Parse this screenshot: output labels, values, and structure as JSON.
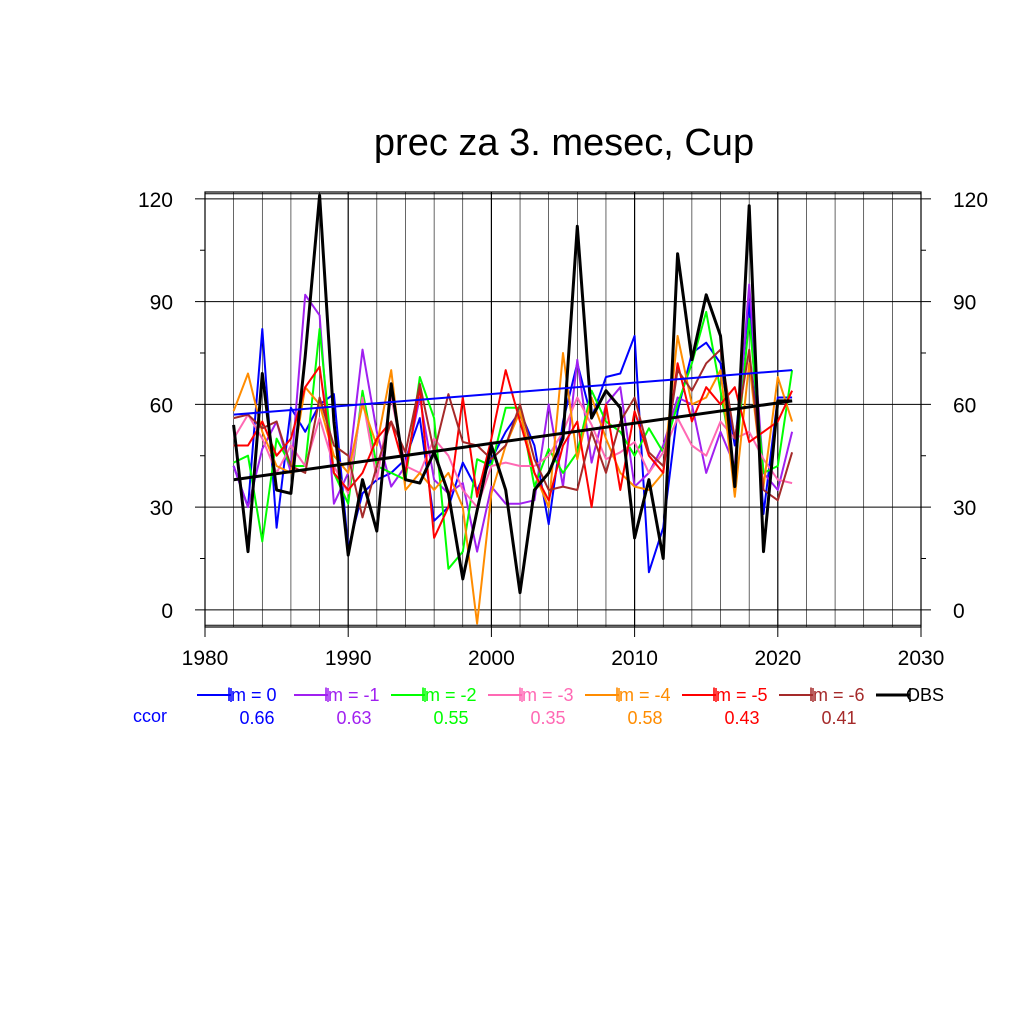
{
  "chart_data": {
    "type": "line",
    "title": "prec za 3. mesec, Cup",
    "xlim": [
      1980,
      2030
    ],
    "ylim": [
      -5,
      122
    ],
    "x_ticks": [
      1980,
      1990,
      2000,
      2010,
      2020,
      2030
    ],
    "y_ticks": [
      0,
      30,
      60,
      90,
      120
    ],
    "grid": true,
    "legend_position": "bottom",
    "ccor_label": "ccor",
    "x": [
      1982,
      1983,
      1984,
      1985,
      1986,
      1987,
      1988,
      1989,
      1990,
      1991,
      1992,
      1993,
      1994,
      1995,
      1996,
      1997,
      1998,
      1999,
      2000,
      2001,
      2002,
      2003,
      2004,
      2005,
      2006,
      2007,
      2008,
      2009,
      2010,
      2011,
      2012,
      2013,
      2014,
      2015,
      2016,
      2017,
      2018,
      2019,
      2020,
      2021
    ],
    "series": [
      {
        "name": "lm = 0",
        "color": "#0000ff",
        "ccor": "0.66",
        "width": 2,
        "values": [
          42,
          30,
          82,
          24,
          59,
          52,
          60,
          63,
          18,
          34,
          38,
          40,
          44,
          56,
          26,
          30,
          43,
          35,
          44,
          52,
          58,
          48,
          25,
          55,
          72,
          56,
          68,
          69,
          80,
          11,
          24,
          58,
          75,
          78,
          72,
          48,
          90,
          28,
          62,
          62
        ],
        "trend": [
          57,
          70
        ]
      },
      {
        "name": "lm = -1",
        "color": "#a020f0",
        "ccor": "0.63",
        "width": 2,
        "values": [
          42,
          30,
          47,
          55,
          40,
          92,
          86,
          31,
          40,
          76,
          52,
          36,
          42,
          62,
          38,
          34,
          37,
          17,
          36,
          31,
          31,
          32,
          60,
          36,
          73,
          43,
          60,
          65,
          36,
          40,
          48,
          62,
          60,
          40,
          52,
          42,
          95,
          40,
          35,
          52
        ]
      },
      {
        "name": "lm = -2",
        "color": "#00ff00",
        "ccor": "0.55",
        "width": 2,
        "values": [
          43,
          45,
          20,
          50,
          42,
          42,
          82,
          40,
          31,
          64,
          42,
          40,
          38,
          68,
          56,
          12,
          17,
          44,
          42,
          59,
          59,
          36,
          47,
          40,
          46,
          64,
          55,
          52,
          45,
          53,
          46,
          60,
          72,
          87,
          64,
          40,
          85,
          40,
          42,
          70
        ]
      },
      {
        "name": "lm = -3",
        "color": "#ff69b4",
        "ccor": "0.35",
        "width": 2,
        "values": [
          50,
          57,
          50,
          40,
          48,
          42,
          56,
          42,
          34,
          62,
          38,
          62,
          42,
          40,
          50,
          45,
          35,
          30,
          42,
          43,
          42,
          42,
          45,
          52,
          62,
          54,
          44,
          46,
          49,
          40,
          46,
          56,
          48,
          45,
          55,
          50,
          52,
          44,
          38,
          37
        ]
      },
      {
        "name": "lm = -4",
        "color": "#ff8c00",
        "ccor": "0.58",
        "width": 2,
        "values": [
          58,
          69,
          52,
          42,
          40,
          65,
          60,
          45,
          40,
          60,
          48,
          70,
          35,
          40,
          35,
          40,
          30,
          -4,
          34,
          48,
          58,
          40,
          30,
          75,
          44,
          62,
          50,
          40,
          36,
          35,
          40,
          80,
          60,
          62,
          70,
          33,
          72,
          36,
          68,
          55
        ]
      },
      {
        "name": "lm = -5",
        "color": "#ff0000",
        "ccor": "0.43",
        "width": 2,
        "values": [
          48,
          48,
          55,
          45,
          50,
          65,
          71,
          40,
          35,
          40,
          50,
          55,
          40,
          65,
          21,
          30,
          62,
          33,
          50,
          70,
          55,
          40,
          32,
          48,
          55,
          30,
          60,
          35,
          58,
          45,
          40,
          72,
          55,
          65,
          60,
          65,
          49,
          52,
          55,
          64
        ]
      },
      {
        "name": "lm = -6",
        "color": "#a52a2a",
        "ccor": "0.41",
        "width": 2,
        "values": [
          56,
          57,
          53,
          55,
          42,
          40,
          62,
          48,
          45,
          27,
          42,
          55,
          46,
          66,
          46,
          63,
          49,
          48,
          44,
          48,
          60,
          44,
          35,
          36,
          35,
          52,
          40,
          55,
          62,
          46,
          42,
          70,
          64,
          72,
          76,
          50,
          76,
          35,
          32,
          46
        ]
      },
      {
        "name": "OBS",
        "color": "#000000",
        "width": 3,
        "values": [
          54,
          17,
          69,
          35,
          34,
          74,
          121,
          55,
          16,
          38,
          23,
          66,
          38,
          37,
          46,
          34,
          9,
          29,
          48,
          35,
          5,
          35,
          40,
          50,
          112,
          56,
          64,
          59,
          21,
          38,
          15,
          104,
          73,
          92,
          80,
          36,
          118,
          17,
          61,
          61
        ],
        "trend": [
          38,
          61
        ]
      }
    ]
  }
}
